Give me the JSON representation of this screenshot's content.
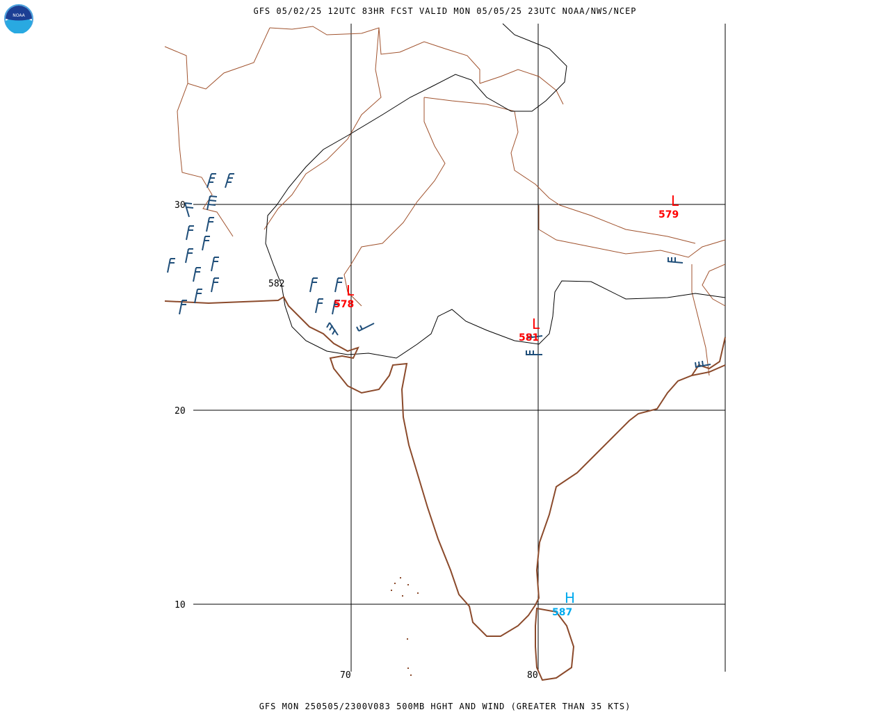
{
  "header": {
    "title": "GFS 05/02/25 12UTC 83HR FCST VALID MON 05/05/25 23UTC NOAA/NWS/NCEP"
  },
  "footer": {
    "caption": "GFS MON 250505/2300V083 500MB HGHT AND WIND (GREATER THAN 35 KTS)"
  },
  "logo": {
    "text": "NOAA",
    "icon": "noaa-logo-icon"
  },
  "grid": {
    "lat_labels": [
      "30",
      "20",
      "10"
    ],
    "lon_labels": [
      "70",
      "80"
    ]
  },
  "contour": {
    "label": "582"
  },
  "systems": [
    {
      "id": "low-west",
      "letter": "L",
      "value": "578",
      "color": "#ff0000"
    },
    {
      "id": "low-central",
      "letter": "L",
      "value": "581",
      "color": "#ff0000"
    },
    {
      "id": "low-northeast",
      "letter": "L",
      "value": "579",
      "color": "#ff0000"
    },
    {
      "id": "high-south",
      "letter": "H",
      "value": "587",
      "color": "#00aaee"
    }
  ],
  "colors": {
    "coast": "#8b4a2b",
    "border": "#a0522d",
    "barb": "#1f4e79",
    "grid": "#000000"
  }
}
